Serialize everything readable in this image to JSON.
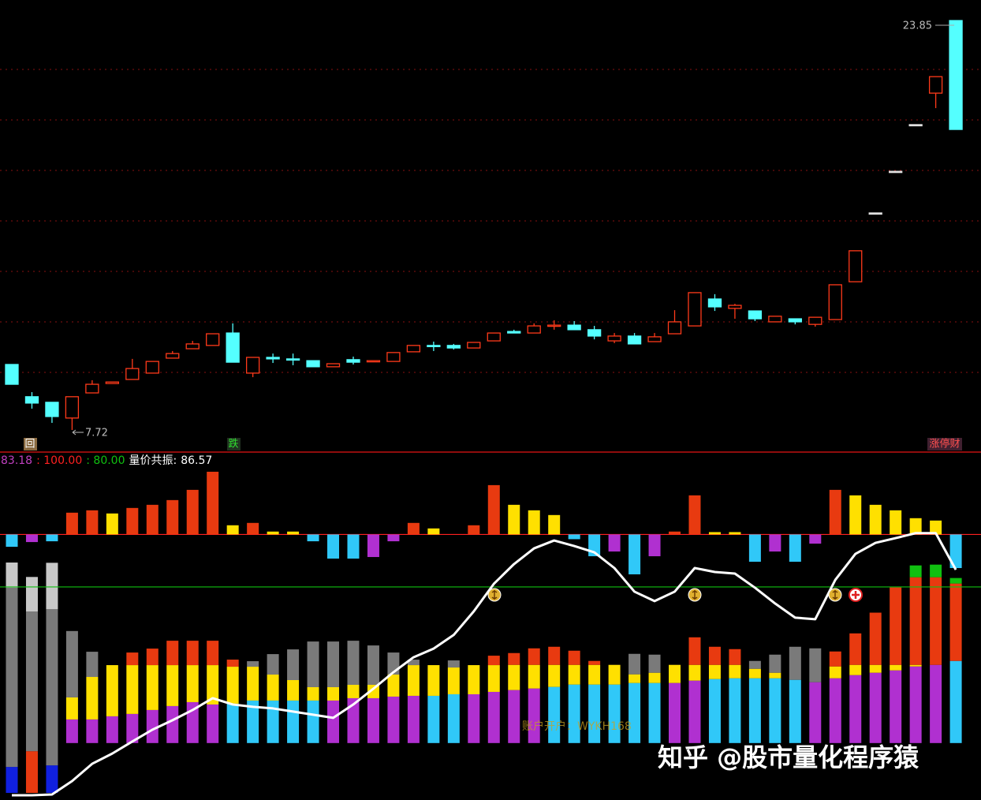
{
  "chart_data": [
    {
      "type": "candlestick",
      "ylim": [
        6.88,
        24.66
      ],
      "up_color": "#ff3a1a",
      "down_color": "#54ffff",
      "flat_color": "#e0e0e0",
      "open": [
        10.3,
        9.03,
        8.81,
        8.19,
        9.18,
        9.55,
        9.71,
        9.96,
        10.55,
        10.92,
        11.05,
        11.54,
        9.96,
        10.58,
        10.52,
        10.45,
        10.21,
        10.49,
        10.42,
        10.42,
        10.8,
        11.05,
        11.05,
        10.95,
        11.23,
        11.6,
        11.54,
        11.82,
        11.85,
        11.67,
        11.23,
        11.42,
        11.2,
        11.51,
        11.82,
        12.88,
        12.51,
        12.41,
        11.98,
        12.1,
        11.88,
        12.07,
        13.56,
        16.27,
        17.91,
        19.75,
        20.99,
        23.85
      ],
      "high": [
        10.3,
        9.21,
        8.81,
        9.03,
        9.68,
        9.61,
        10.52,
        10.42,
        10.83,
        11.23,
        11.51,
        11.92,
        10.58,
        10.73,
        10.73,
        10.45,
        10.33,
        10.61,
        10.45,
        10.77,
        11.05,
        11.2,
        11.11,
        11.17,
        11.54,
        11.67,
        11.92,
        12.04,
        12.01,
        11.82,
        11.54,
        11.54,
        11.54,
        12.44,
        13.13,
        13.07,
        12.69,
        12.41,
        12.2,
        12.1,
        12.16,
        13.44,
        14.78,
        16.27,
        17.91,
        19.75,
        21.64,
        23.85
      ],
      "low": [
        9.52,
        8.56,
        8.0,
        7.72,
        9.18,
        9.55,
        9.71,
        9.96,
        10.55,
        10.92,
        11.05,
        10.39,
        9.8,
        10.36,
        10.27,
        10.21,
        10.21,
        10.3,
        10.42,
        10.42,
        10.8,
        10.83,
        10.89,
        10.95,
        11.23,
        11.54,
        11.54,
        11.67,
        11.67,
        11.29,
        11.14,
        11.11,
        11.2,
        11.51,
        11.82,
        12.41,
        12.1,
        12.01,
        11.98,
        11.88,
        11.79,
        12.07,
        13.56,
        16.27,
        17.91,
        19.75,
        20.4,
        19.56
      ],
      "close": [
        9.52,
        8.78,
        8.25,
        9.03,
        9.52,
        9.61,
        10.14,
        10.42,
        10.73,
        11.11,
        11.51,
        10.39,
        10.58,
        10.52,
        10.49,
        10.21,
        10.33,
        10.39,
        10.45,
        10.77,
        11.05,
        11.01,
        10.95,
        11.17,
        11.54,
        11.54,
        11.82,
        11.85,
        11.67,
        11.42,
        11.42,
        11.11,
        11.39,
        11.98,
        13.13,
        12.57,
        12.63,
        12.1,
        12.2,
        11.98,
        12.16,
        13.44,
        14.78,
        16.27,
        17.91,
        19.75,
        21.64,
        19.56
      ],
      "high_label": 23.85,
      "low_label": 7.72,
      "signals": [
        "回",
        "跌",
        "涨停财"
      ]
    },
    {
      "type": "bar-line",
      "ylim": [
        0,
        131.7
      ],
      "readouts": [
        {
          "value": 83.18,
          "color": "#c040c0"
        }
      ],
      "reference_lines": [
        {
          "value": 100,
          "label": ": 100.00",
          "color": "#ff2020"
        },
        {
          "value": 80,
          "label": ": 80.00",
          "color": "#10c010"
        }
      ],
      "bars": {
        "values": [
          95.3,
          97.1,
          97.4,
          108.3,
          109.2,
          108.0,
          110.1,
          111.3,
          113.1,
          117.0,
          123.9,
          103.5,
          104.4,
          101.1,
          101.1,
          97.4,
          90.8,
          90.8,
          91.4,
          97.4,
          104.4,
          102.3,
          null,
          103.5,
          118.8,
          111.3,
          109.2,
          107.4,
          98.2,
          91.7,
          93.5,
          84.8,
          91.7,
          101.1,
          114.9,
          100.9,
          100.9,
          89.6,
          93.5,
          89.6,
          96.5,
          117.0,
          114.9,
          111.3,
          109.2,
          106.2,
          105.3,
          87.2
        ],
        "colors": [
          "#30c8f8",
          "#b030d0",
          "#30c8f8",
          "#e83a10",
          "#e83a10",
          "#ffe000",
          "#e83a10",
          "#e83a10",
          "#e83a10",
          "#e83a10",
          "#e83a10",
          "#ffe000",
          "#e83a10",
          "#ffe000",
          "#ffe000",
          "#30c8f8",
          "#30c8f8",
          "#30c8f8",
          "#b030d0",
          "#b030d0",
          "#e83a10",
          "#ffe000",
          null,
          "#e83a10",
          "#e83a10",
          "#ffe000",
          "#ffe000",
          "#ffe000",
          "#30c8f8",
          "#30c8f8",
          "#b030d0",
          "#30c8f8",
          "#b030d0",
          "#e83a10",
          "#e83a10",
          "#ffe000",
          "#ffe000",
          "#30c8f8",
          "#b030d0",
          "#30c8f8",
          "#b030d0",
          "#e83a10",
          "#ffe000",
          "#ffe000",
          "#ffe000",
          "#ffe000",
          "#ffe000",
          "#30c8f8"
        ]
      },
      "stacks": [
        {
          "color": "#000000",
          "values": [
            1.5,
            1.5,
            1.5,
            20.5,
            20.5,
            20.5,
            20.5,
            20.5,
            20.5,
            20.5,
            20.5,
            20.5,
            20.5,
            20.5,
            20.5,
            20.5,
            20.5,
            20.5,
            20.5,
            20.5,
            20.5,
            20.5,
            20.5,
            20.5,
            20.5,
            20.5,
            20.5,
            20.5,
            20.5,
            20.5,
            20.5,
            20.5,
            20.5,
            20.5,
            20.5,
            20.5,
            20.5,
            20.5,
            20.5,
            20.5,
            20.5,
            20.5,
            20.5,
            20.5,
            20.5,
            20.5,
            20.5,
            20.5
          ]
        },
        {
          "values": [
            9.9,
            15.9,
            10.5,
            9.0,
            9.0,
            10.2,
            11.1,
            12.6,
            14.1,
            15.6,
            14.7,
            15.0,
            16.2,
            16.2,
            16.2,
            16.2,
            16.2,
            17.1,
            17.1,
            17.7,
            18.0,
            18.0,
            18.6,
            18.6,
            19.5,
            20.2,
            20.8,
            21.4,
            22.3,
            22.3,
            22.3,
            22.9,
            22.9,
            22.9,
            23.8,
            24.4,
            24.7,
            24.7,
            24.7,
            24.1,
            23.2,
            24.7,
            25.9,
            26.8,
            27.7,
            29.2,
            29.8,
            31.3
          ],
          "colors": [
            "#1020e0",
            "#e83a10",
            "#1020e0",
            "#b030d0",
            "#b030d0",
            "#b030d0",
            "#b030d0",
            "#b030d0",
            "#b030d0",
            "#b030d0",
            "#b030d0",
            "#30c8f8",
            "#30c8f8",
            "#30c8f8",
            "#30c8f8",
            "#30c8f8",
            "#b030d0",
            "#b030d0",
            "#b030d0",
            "#b030d0",
            "#b030d0",
            "#30c8f8",
            "#30c8f8",
            "#b030d0",
            "#b030d0",
            "#b030d0",
            "#b030d0",
            "#30c8f8",
            "#30c8f8",
            "#30c8f8",
            "#30c8f8",
            "#30c8f8",
            "#30c8f8",
            "#b030d0",
            "#b030d0",
            "#30c8f8",
            "#30c8f8",
            "#30c8f8",
            "#30c8f8",
            "#30c8f8",
            "#b030d0",
            "#b030d0",
            "#b030d0",
            "#b030d0",
            "#b030d0",
            "#b030d0",
            "#b030d0",
            "#30c8f8"
          ]
        },
        {
          "values": [
            68.3,
            53.2,
            59.5,
            8.4,
            16.2,
            19.5,
            18.6,
            17.1,
            15.6,
            14.1,
            15.0,
            14.1,
            12.9,
            9.9,
            7.8,
            5.1,
            5.1,
            5.1,
            5.1,
            8.4,
            11.7,
            11.7,
            10.2,
            11.1,
            10.2,
            9.6,
            9.0,
            8.4,
            7.5,
            7.5,
            7.5,
            3.3,
            3.9,
            6.9,
            6.0,
            5.4,
            5.1,
            3.6,
            2.1,
            12.6,
            12.9,
            4.5,
            3.9,
            3.0,
            2.1,
            0.6,
            null,
            null
          ],
          "colors": [
            "#7a7a7a",
            "#7a7a7a",
            "#7a7a7a",
            "#ffe000",
            "#ffe000",
            "#ffe000",
            "#ffe000",
            "#ffe000",
            "#ffe000",
            "#ffe000",
            "#ffe000",
            "#ffe000",
            "#ffe000",
            "#ffe000",
            "#ffe000",
            "#ffe000",
            "#ffe000",
            "#ffe000",
            "#ffe000",
            "#ffe000",
            "#ffe000",
            "#ffe000",
            "#ffe000",
            "#ffe000",
            "#ffe000",
            "#ffe000",
            "#ffe000",
            "#ffe000",
            "#ffe000",
            "#ffe000",
            "#ffe000",
            "#ffe000",
            "#ffe000",
            "#ffe000",
            "#ffe000",
            "#ffe000",
            "#ffe000",
            "#ffe000",
            "#ffe000",
            "#7a7a7a",
            "#7a7a7a",
            "#ffe000",
            "#ffe000",
            "#ffe000",
            "#ffe000",
            "#ffe000",
            null,
            null
          ]
        },
        {
          "values": [
            9.6,
            13.2,
            17.7,
            25.3,
            9.6,
            null,
            4.8,
            6.3,
            9.3,
            9.3,
            9.3,
            2.7,
            2.1,
            7.8,
            11.7,
            17.4,
            17.4,
            16.8,
            15.0,
            8.4,
            2.1,
            null,
            2.7,
            null,
            3.6,
            4.5,
            6.3,
            6.9,
            5.4,
            1.5,
            null,
            7.8,
            6.9,
            null,
            10.5,
            6.9,
            6.0,
            3.0,
            6.9,
            null,
            null,
            5.7,
            12.0,
            19.9,
            29.5,
            33.4,
            33.4,
            29.5
          ],
          "colors": [
            "#c8c8c8",
            "#c8c8c8",
            "#c8c8c8",
            "#7a7a7a",
            "#7a7a7a",
            null,
            "#e83a10",
            "#e83a10",
            "#e83a10",
            "#e83a10",
            "#e83a10",
            "#e83a10",
            "#7a7a7a",
            "#7a7a7a",
            "#7a7a7a",
            "#7a7a7a",
            "#7a7a7a",
            "#7a7a7a",
            "#7a7a7a",
            "#7a7a7a",
            "#7a7a7a",
            null,
            "#7a7a7a",
            null,
            "#e83a10",
            "#e83a10",
            "#e83a10",
            "#e83a10",
            "#e83a10",
            "#e83a10",
            null,
            "#7a7a7a",
            "#7a7a7a",
            null,
            "#e83a10",
            "#e83a10",
            "#e83a10",
            "#7a7a7a",
            "#7a7a7a",
            null,
            null,
            "#e83a10",
            "#e83a10",
            "#e83a10",
            "#e83a10",
            "#e83a10",
            "#e83a10",
            "#e83a10"
          ]
        },
        {
          "color": "#10c010",
          "values": [
            null,
            null,
            null,
            null,
            null,
            null,
            null,
            null,
            null,
            null,
            null,
            null,
            null,
            null,
            null,
            null,
            null,
            null,
            null,
            null,
            null,
            null,
            null,
            null,
            null,
            null,
            null,
            null,
            null,
            null,
            null,
            null,
            null,
            null,
            null,
            null,
            null,
            null,
            null,
            null,
            null,
            null,
            null,
            null,
            null,
            4.5,
            4.8,
            2.1
          ]
        }
      ],
      "line": {
        "name": "量价共振:",
        "color": "#ffffff",
        "values": [
          0.6,
          0.6,
          0.9,
          6.0,
          12.6,
          16.5,
          21.1,
          25.6,
          29.2,
          33.1,
          37.6,
          35.2,
          34.3,
          33.7,
          32.5,
          31.3,
          30.1,
          35.2,
          41.2,
          47.5,
          53.2,
          56.5,
          61.7,
          70.7,
          81.2,
          88.7,
          94.7,
          97.7,
          95.6,
          93.2,
          87.2,
          78.2,
          74.6,
          78.2,
          87.2,
          85.7,
          85.1,
          79.7,
          73.7,
          68.3,
          67.7,
          82.7,
          92.6,
          96.8,
          98.6,
          100.5,
          100.5,
          86.57
        ]
      },
      "ad": "账户开户：WYKH168",
      "watermark": "知乎 @股市量化程序猿"
    }
  ]
}
